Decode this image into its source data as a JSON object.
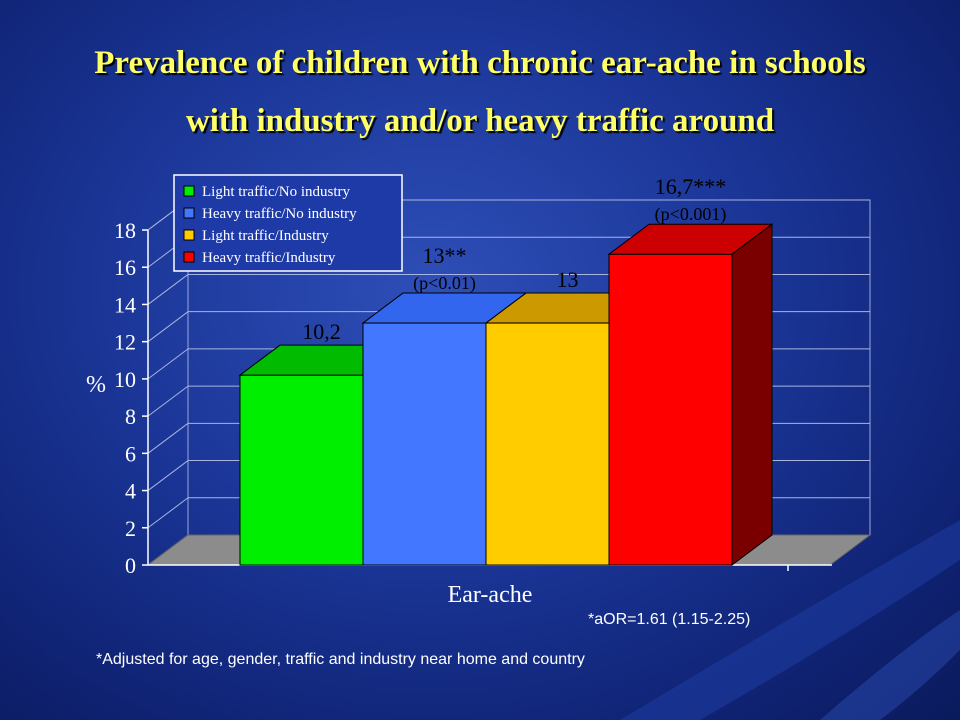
{
  "title": {
    "line1": "Prevalence of children with chronic ear-ache  in schools",
    "line2": "with industry and/or heavy traffic around"
  },
  "chart_data": {
    "type": "bar",
    "categories": [
      "Ear-ache"
    ],
    "xlabel": "Ear-ache",
    "ylabel": "%",
    "ylim": [
      0,
      18
    ],
    "yticks": [
      0,
      2,
      4,
      6,
      8,
      10,
      12,
      14,
      16,
      18
    ],
    "grid": true,
    "legend_position": "top-left",
    "series": [
      {
        "name": "Light traffic/No industry",
        "values": [
          10.2
        ],
        "label": "10,2",
        "color": "#00ee00",
        "side_color": "#009900",
        "top_color": "#00bb00"
      },
      {
        "name": "Heavy traffic/No industry",
        "values": [
          13
        ],
        "label": "13**",
        "annotation": "(p<0.01)",
        "color": "#4477ff",
        "side_color": "#2244aa",
        "top_color": "#3366ee"
      },
      {
        "name": "Light traffic/Industry",
        "values": [
          13
        ],
        "label": "13",
        "color": "#ffcc00",
        "side_color": "#aa8800",
        "top_color": "#cc9900"
      },
      {
        "name": "Heavy traffic/Industry",
        "values": [
          16.7
        ],
        "label": "16,7***",
        "annotation": "(p<0.001)",
        "color": "#ff0000",
        "side_color": "#7a0000",
        "top_color": "#cc0000"
      }
    ]
  },
  "notes": {
    "aor": "*aOR=1.61 (1.15-2.25)",
    "adjusted": "*Adjusted for age, gender, traffic and industry near home and country"
  }
}
